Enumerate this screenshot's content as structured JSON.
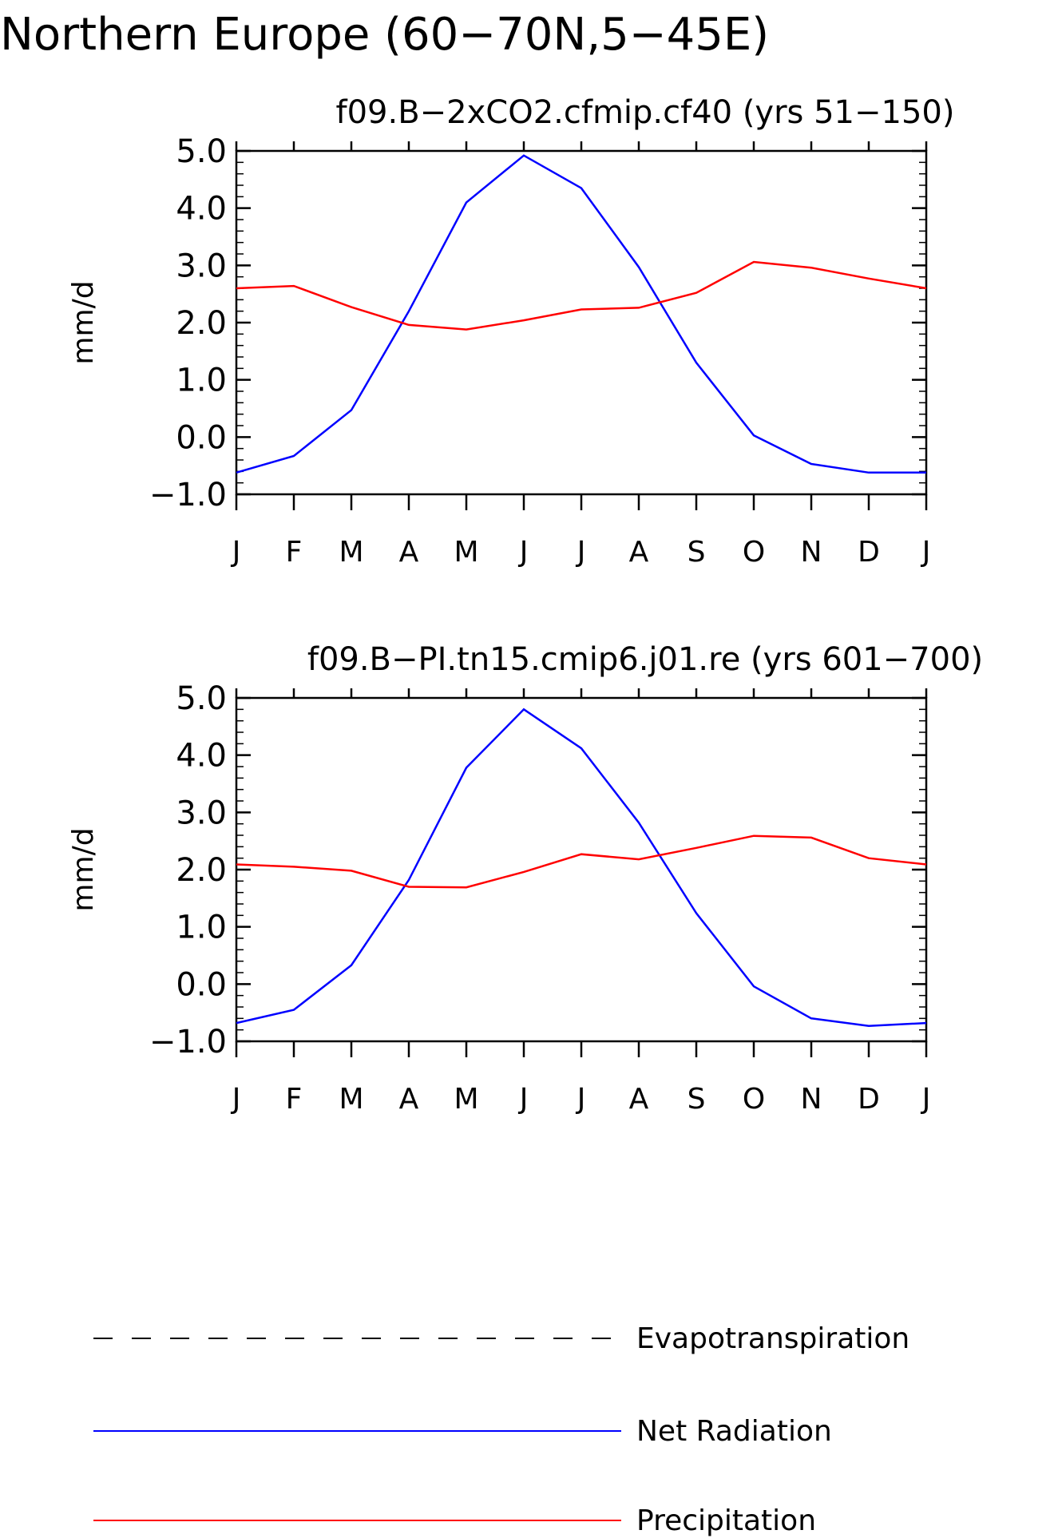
{
  "page_title": "Northern Europe (60−70N,5−45E)",
  "colors": {
    "net_radiation": "#0000ff",
    "precipitation": "#ff0000",
    "evapotranspiration": "#000000",
    "axes": "#000000"
  },
  "chart_data": [
    {
      "type": "line",
      "title": "f09.B−2xCO2.cfmip.cf40 (yrs 51−150)",
      "ylabel": "mm/d",
      "xlabel": "",
      "ylim": [
        -1.0,
        5.0
      ],
      "yticks": [
        "5.0",
        "4.0",
        "3.0",
        "2.0",
        "1.0",
        "0.0",
        "−1.0"
      ],
      "categories": [
        "J",
        "F",
        "M",
        "A",
        "M",
        "J",
        "J",
        "A",
        "S",
        "O",
        "N",
        "D",
        "J"
      ],
      "grid": false,
      "series": [
        {
          "name": "Net Radiation",
          "color_key": "net_radiation",
          "values": [
            -0.62,
            -0.33,
            0.47,
            2.2,
            4.1,
            4.92,
            4.35,
            2.97,
            1.3,
            0.03,
            -0.47,
            -0.62,
            -0.62
          ]
        },
        {
          "name": "Precipitation",
          "color_key": "precipitation",
          "values": [
            2.6,
            2.64,
            2.27,
            1.96,
            1.88,
            2.04,
            2.23,
            2.26,
            2.52,
            3.06,
            2.96,
            2.77,
            2.6
          ]
        }
      ]
    },
    {
      "type": "line",
      "title": "f09.B−PI.tn15.cmip6.j01.re (yrs 601−700)",
      "ylabel": "mm/d",
      "xlabel": "",
      "ylim": [
        -1.0,
        5.0
      ],
      "yticks": [
        "5.0",
        "4.0",
        "3.0",
        "2.0",
        "1.0",
        "0.0",
        "−1.0"
      ],
      "categories": [
        "J",
        "F",
        "M",
        "A",
        "M",
        "J",
        "J",
        "A",
        "S",
        "O",
        "N",
        "D",
        "J"
      ],
      "grid": false,
      "series": [
        {
          "name": "Net Radiation",
          "color_key": "net_radiation",
          "values": [
            -0.68,
            -0.45,
            0.33,
            1.82,
            3.78,
            4.8,
            4.12,
            2.82,
            1.24,
            -0.04,
            -0.6,
            -0.73,
            -0.68
          ]
        },
        {
          "name": "Precipitation",
          "color_key": "precipitation",
          "values": [
            2.09,
            2.05,
            1.98,
            1.7,
            1.69,
            1.96,
            2.27,
            2.18,
            2.38,
            2.59,
            2.56,
            2.2,
            2.09
          ]
        }
      ]
    }
  ],
  "legend": {
    "placement": "bottom",
    "items": [
      {
        "label": "Evapotranspiration",
        "style": "dashed",
        "color_key": "evapotranspiration"
      },
      {
        "label": "Net Radiation",
        "style": "solid",
        "color_key": "net_radiation"
      },
      {
        "label": "Precipitation",
        "style": "solid",
        "color_key": "precipitation"
      }
    ]
  }
}
